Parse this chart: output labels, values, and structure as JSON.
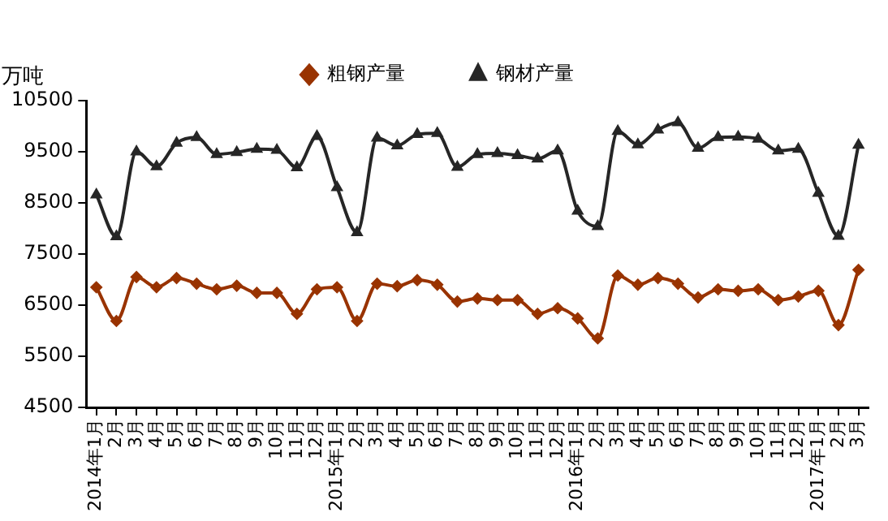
{
  "chart_data": {
    "type": "line",
    "ylabel": "万吨",
    "categories": [
      "2014年1月",
      "2月",
      "3月",
      "4月",
      "5月",
      "6月",
      "7月",
      "8月",
      "9月",
      "10月",
      "11月",
      "12月",
      "2015年1月",
      "2月",
      "3月",
      "4月",
      "5月",
      "6月",
      "7月",
      "8月",
      "9月",
      "10月",
      "11月",
      "12月",
      "2016年1月",
      "2月",
      "3月",
      "4月",
      "5月",
      "6月",
      "7月",
      "8月",
      "9月",
      "10月",
      "11月",
      "12月",
      "2017年1月",
      "2月",
      "3月"
    ],
    "series": [
      {
        "name": "粗钢产量",
        "color": "#993300",
        "marker": "diamond",
        "values": [
          6850,
          6190,
          7050,
          6850,
          7030,
          6920,
          6810,
          6880,
          6740,
          6740,
          6330,
          6810,
          6850,
          6190,
          6920,
          6870,
          6990,
          6900,
          6570,
          6630,
          6600,
          6600,
          6330,
          6440,
          6240,
          5850,
          7080,
          6900,
          7030,
          6920,
          6650,
          6810,
          6780,
          6810,
          6600,
          6670,
          6780,
          6110,
          7190
        ]
      },
      {
        "name": "钢材产量",
        "color": "#262626",
        "marker": "triangle",
        "values": [
          8660,
          7840,
          9500,
          9210,
          9670,
          9780,
          9450,
          9490,
          9550,
          9530,
          9190,
          9800,
          8800,
          7920,
          9770,
          9620,
          9840,
          9860,
          9200,
          9450,
          9470,
          9430,
          9360,
          9520,
          8340,
          8040,
          9900,
          9640,
          9930,
          10070,
          9570,
          9780,
          9790,
          9750,
          9520,
          9550,
          8690,
          7850,
          9630
        ]
      }
    ],
    "ylim": [
      4500,
      10500
    ],
    "yticks": [
      4500,
      5500,
      6500,
      7500,
      8500,
      9500,
      10500
    ],
    "grid": false,
    "legend": "top",
    "line_style": "solid"
  }
}
